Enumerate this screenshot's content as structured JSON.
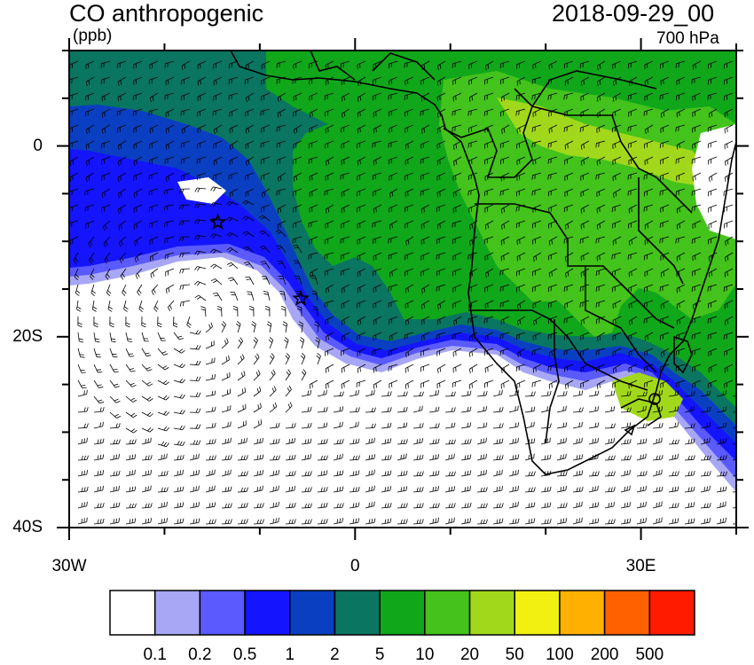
{
  "title": "CO anthropogenic",
  "units": "(ppb)",
  "datetime": "2018-09-29_00",
  "level": "700 hPa",
  "axes": {
    "x_ticks": [
      {
        "label": "30W",
        "lon": -30
      },
      {
        "label": "0",
        "lon": 0
      },
      {
        "label": "30E",
        "lon": 30
      }
    ],
    "y_ticks": [
      {
        "label": "0",
        "lat": 0
      },
      {
        "label": "20S",
        "lat": -20
      },
      {
        "label": "40S",
        "lat": -40
      }
    ],
    "lon_range": [
      -30,
      40
    ],
    "lat_range": [
      -40,
      10
    ]
  },
  "markers": [
    {
      "name": "star-1",
      "lon": -14.4,
      "lat": -8.0
    },
    {
      "name": "star-2",
      "lon": -5.7,
      "lat": -16.0
    }
  ],
  "colorbar": {
    "colors": [
      "#ffffff",
      "#a7a7f5",
      "#5a5aff",
      "#1414ff",
      "#0a3fc2",
      "#0a7560",
      "#10a71b",
      "#43c31b",
      "#a2d81b",
      "#f1f010",
      "#ffb000",
      "#ff6100",
      "#ff1b00"
    ],
    "labels": [
      "0.1",
      "0.2",
      "0.5",
      "1",
      "2",
      "5",
      "10",
      "20",
      "50",
      "100",
      "200",
      "500"
    ]
  }
}
